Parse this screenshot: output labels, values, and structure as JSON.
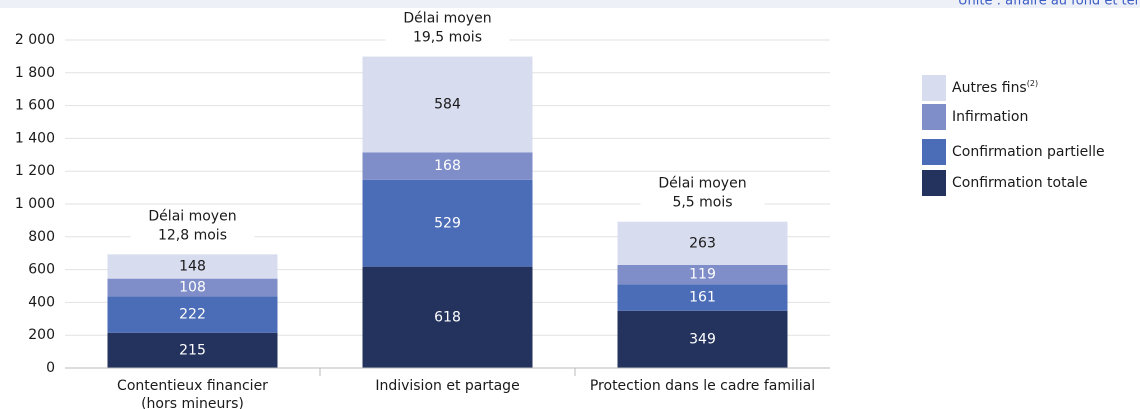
{
  "chart_data": {
    "type": "stacked_bar",
    "subtitle": "Unité : affaire au fond et ter",
    "categories": [
      [
        "Contentieux financier",
        "(hors mineurs)"
      ],
      [
        "Indivision et partage"
      ],
      [
        "Protection dans le cadre familial"
      ]
    ],
    "series": [
      {
        "name": "Confirmation totale",
        "color": "#23335e",
        "label_color": "#ffffff",
        "values": [
          215,
          618,
          349
        ]
      },
      {
        "name": "Confirmation partielle",
        "color": "#4b6cb7",
        "label_color": "#ffffff",
        "values": [
          222,
          529,
          161
        ]
      },
      {
        "name": "Infirmation",
        "color": "#7f8ec9",
        "label_color": "#ffffff",
        "values": [
          108,
          168,
          119
        ]
      },
      {
        "name": "Autres fins",
        "name_note": "(2)",
        "color": "#d8dcef",
        "label_color": "#1a1a1a",
        "values": [
          148,
          584,
          263
        ]
      }
    ],
    "annotations": [
      [
        "Délai moyen",
        "12,8 mois"
      ],
      [
        "Délai moyen",
        "19,5 mois"
      ],
      [
        "Délai moyen",
        "5,5  mois"
      ]
    ],
    "ylim": [
      0,
      2000
    ],
    "yticks": [
      0,
      200,
      400,
      600,
      800,
      {
        "value": 1000,
        "label": "1 000"
      },
      {
        "value": 1200,
        "label": "1 200"
      },
      {
        "value": 1400,
        "label": "1 400"
      },
      {
        "value": 1600,
        "label": "1 600"
      },
      {
        "value": 1800,
        "label": "1 800"
      },
      {
        "value": 2000,
        "label": "2 000"
      }
    ],
    "grid": true
  }
}
